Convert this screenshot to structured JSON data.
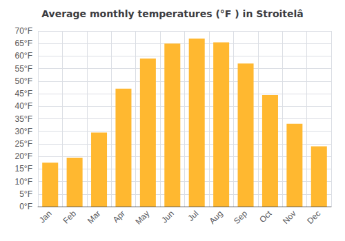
{
  "chart_data": {
    "type": "bar",
    "title": "Average monthly temperatures (°F ) in Stroitelâ",
    "categories": [
      "Jan",
      "Feb",
      "Mar",
      "Apr",
      "May",
      "Jun",
      "Jul",
      "Aug",
      "Sep",
      "Oct",
      "Nov",
      "Dec"
    ],
    "values": [
      17.5,
      19.5,
      29.5,
      47.0,
      59.0,
      65.0,
      67.0,
      65.5,
      57.0,
      44.5,
      33.0,
      24.0
    ],
    "color": "#FFB830",
    "ylim": [
      0,
      70
    ],
    "yticks": [
      {
        "value": 0,
        "label": "0°F"
      },
      {
        "value": 5,
        "label": "5°F"
      },
      {
        "value": 10,
        "label": "10°F"
      },
      {
        "value": 15,
        "label": "15°F"
      },
      {
        "value": 20,
        "label": "20°F"
      },
      {
        "value": 25,
        "label": "25°F"
      },
      {
        "value": 30,
        "label": "30°F"
      },
      {
        "value": 35,
        "label": "35°F"
      },
      {
        "value": 40,
        "label": "40°F"
      },
      {
        "value": 45,
        "label": "45°F"
      },
      {
        "value": 50,
        "label": "50°F"
      },
      {
        "value": 55,
        "label": "55°F"
      },
      {
        "value": 60,
        "label": "60°F"
      },
      {
        "value": 65,
        "label": "65°F"
      },
      {
        "value": 70,
        "label": "70°F"
      }
    ],
    "grid": true
  }
}
